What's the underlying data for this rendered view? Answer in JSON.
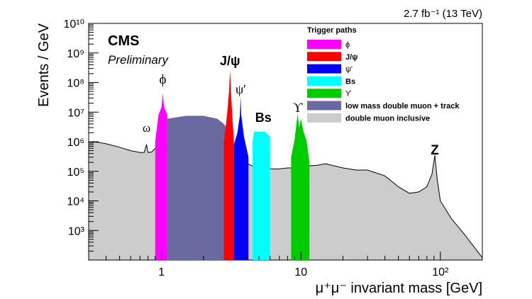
{
  "chart_data": {
    "type": "area",
    "title": "",
    "lumi_label": "2.7 fb⁻¹ (13 TeV)",
    "experiment": "CMS",
    "status": "Preliminary",
    "xlabel": "μ⁺μ⁻ invariant mass [GeV]",
    "ylabel": "Events / GeV",
    "xscale": "log",
    "yscale": "log",
    "xlim": [
      0.3,
      200
    ],
    "ylim": [
      100,
      10000000000
    ],
    "grid": false,
    "x_tick_labels": [
      "1",
      "10",
      "10²"
    ],
    "y_tick_labels": [
      "10³",
      "10⁴",
      "10⁵",
      "10⁶",
      "10⁷",
      "10⁸",
      "10⁹",
      "10¹⁰"
    ],
    "legend": {
      "title": "Trigger paths",
      "placement": "top-right",
      "entries": [
        {
          "label": "ϕ",
          "color": "#ff00ff"
        },
        {
          "label": "J/ψ",
          "color": "#ff0000"
        },
        {
          "label": "ψ'",
          "color": "#0000ff"
        },
        {
          "label": "Bs",
          "color": "#00ffff"
        },
        {
          "label": "ϒ",
          "color": "#00cc00"
        },
        {
          "label": "low mass double muon + track",
          "color": "#6a6aa0"
        },
        {
          "label": "double muon inclusive",
          "color": "#cccccc"
        }
      ]
    },
    "annotations": [
      {
        "label": "ω",
        "x": 0.78
      },
      {
        "label": "ϕ",
        "x": 1.02
      },
      {
        "label": "J/ψ",
        "x": 3.1
      },
      {
        "label": "ψ'",
        "x": 3.69
      },
      {
        "label": "Bs",
        "x": 5.37
      },
      {
        "label": "ϒ",
        "x": 9.46
      },
      {
        "label": "Z",
        "x": 91.2
      }
    ],
    "series": [
      {
        "name": "double muon inclusive",
        "color": "#cccccc",
        "x": [
          0.3,
          0.35,
          0.4,
          0.5,
          0.6,
          0.7,
          0.75,
          0.78,
          0.8,
          0.85,
          0.9,
          1.0,
          1.02,
          1.05,
          1.2,
          1.5,
          2.0,
          2.5,
          3.0,
          3.1,
          3.2,
          3.5,
          3.69,
          3.8,
          4.5,
          5.0,
          6.0,
          7.0,
          8.0,
          9.46,
          10.0,
          11.0,
          13.0,
          15.0,
          20.0,
          25.0,
          30.0,
          40.0,
          50.0,
          60.0,
          70.0,
          80.0,
          87.0,
          91.2,
          95.0,
          100.0,
          120.0,
          150.0,
          200.0
        ],
        "y": [
          1000000,
          950000,
          850000,
          650000,
          500000,
          430000,
          430000,
          800000,
          430000,
          450000,
          600000,
          700000,
          1200000,
          700000,
          700000,
          650000,
          550000,
          450000,
          300000,
          1000000,
          300000,
          250000,
          350000,
          220000,
          150000,
          140000,
          120000,
          120000,
          130000,
          130000,
          140000,
          150000,
          160000,
          180000,
          130000,
          110000,
          110000,
          70000,
          30000,
          18000,
          20000,
          30000,
          80000,
          350000,
          50000,
          10000,
          2500,
          700,
          120
        ]
      },
      {
        "name": "low mass double muon + track",
        "color": "#6a6aa0",
        "x": [
          1.1,
          1.5,
          2.0,
          2.5,
          2.8,
          3.0
        ],
        "y": [
          6000000,
          7500000,
          7500000,
          6000000,
          4000000,
          2500000
        ]
      },
      {
        "name": "ϕ",
        "color": "#ff00ff",
        "x": [
          0.9,
          0.95,
          1.0,
          1.02,
          1.04,
          1.1
        ],
        "y": [
          1000000,
          8000000,
          15000000,
          45000000,
          15000000,
          8000000
        ]
      },
      {
        "name": "J/ψ",
        "color": "#ff0000",
        "x": [
          2.8,
          2.95,
          3.05,
          3.1,
          3.15,
          3.3
        ],
        "y": [
          1000000,
          8000000,
          50000000,
          250000000,
          40000000,
          1000000
        ]
      },
      {
        "name": "ψ'",
        "color": "#0000ff",
        "x": [
          3.3,
          3.5,
          3.65,
          3.69,
          3.73,
          3.9,
          4.2
        ],
        "y": [
          800000,
          2000000,
          8000000,
          35000000,
          8000000,
          1500000,
          300000
        ]
      },
      {
        "name": "Bs",
        "color": "#00ffff",
        "x": [
          4.5,
          4.6,
          5.5,
          6.0
        ],
        "y": [
          1000000,
          2200000,
          2200000,
          1500000
        ]
      },
      {
        "name": "ϒ",
        "color": "#00cc00",
        "x": [
          8.5,
          9.0,
          9.46,
          9.7,
          10.0,
          10.36,
          11.0,
          11.5
        ],
        "y": [
          300000,
          1200000,
          9000000,
          3000000,
          6000000,
          2500000,
          1000000,
          200000
        ]
      }
    ]
  }
}
